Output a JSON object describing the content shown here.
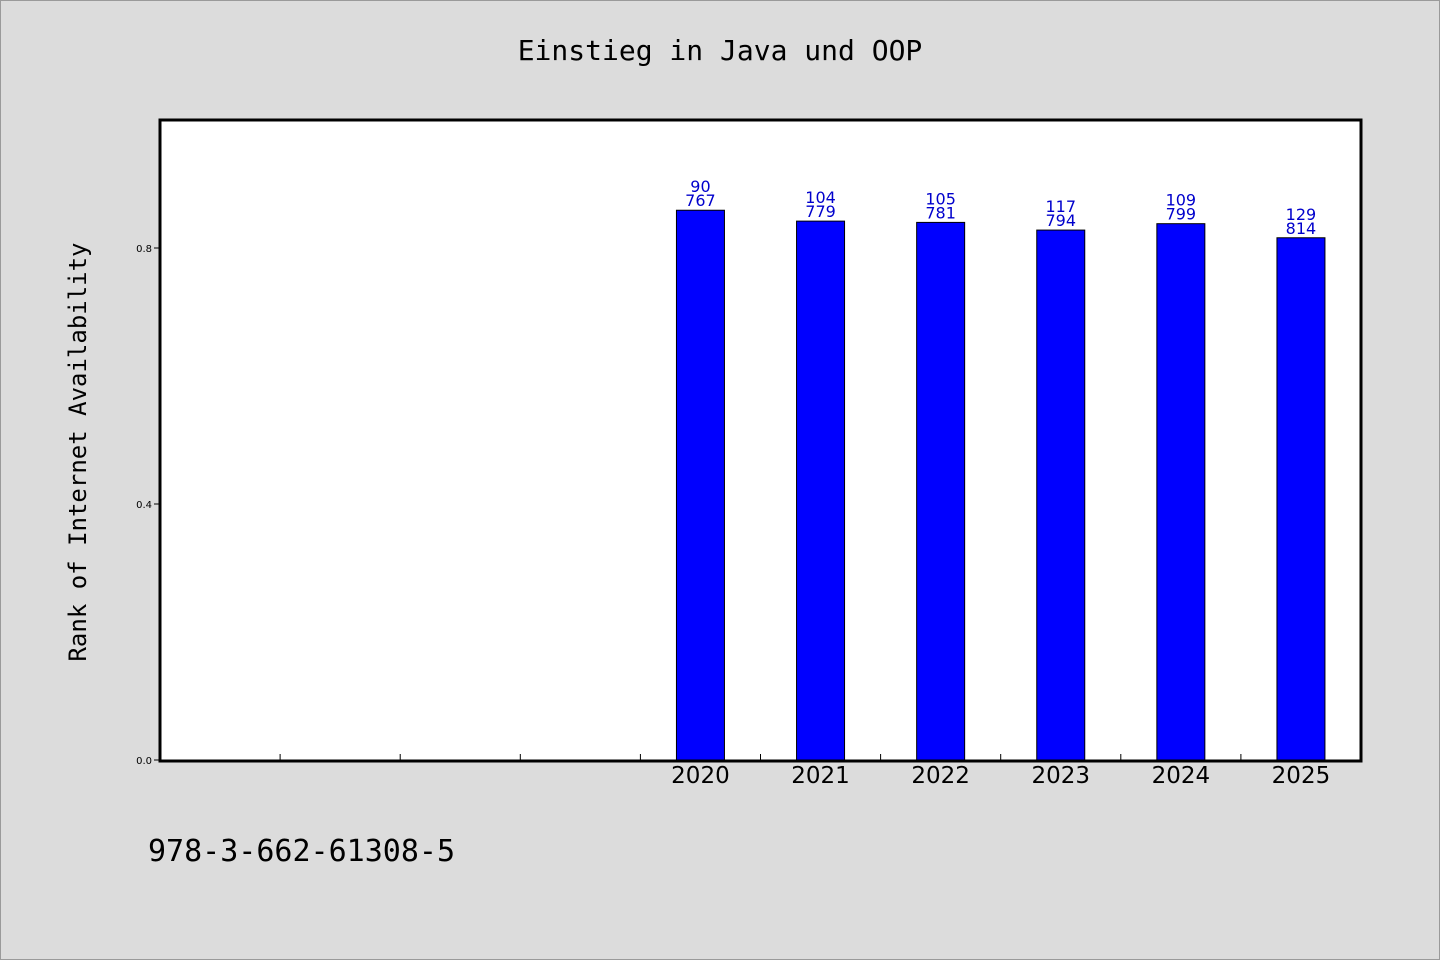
{
  "chart_data": {
    "type": "bar",
    "title": "Einstieg in Java und OOP",
    "xlabel": "",
    "ylabel": "Rank of Internet Availability",
    "categories": [
      "",
      "",
      "",
      "",
      "2020",
      "2021",
      "2022",
      "2023",
      "2024",
      "2025"
    ],
    "values": [
      null,
      null,
      null,
      null,
      0.859,
      0.842,
      0.84,
      0.828,
      0.838,
      0.816
    ],
    "bar_labels": [
      null,
      null,
      null,
      null,
      [
        "90",
        "767"
      ],
      [
        "104",
        "779"
      ],
      [
        "105",
        "781"
      ],
      [
        "117",
        "794"
      ],
      [
        "109",
        "799"
      ],
      [
        "129",
        "814"
      ]
    ],
    "yticks": [
      0.0,
      0.4,
      0.8
    ],
    "ytick_labels": [
      "0.0",
      "0.4",
      "0.8"
    ],
    "ylim": [
      0,
      1.0
    ],
    "grid": false,
    "colors": {
      "bar": "#0000ff",
      "bar_label": "#0000cc",
      "background": "#dcdcdc",
      "plot_background": "#ffffff"
    }
  },
  "footer_text": "978-3-662-61308-5"
}
